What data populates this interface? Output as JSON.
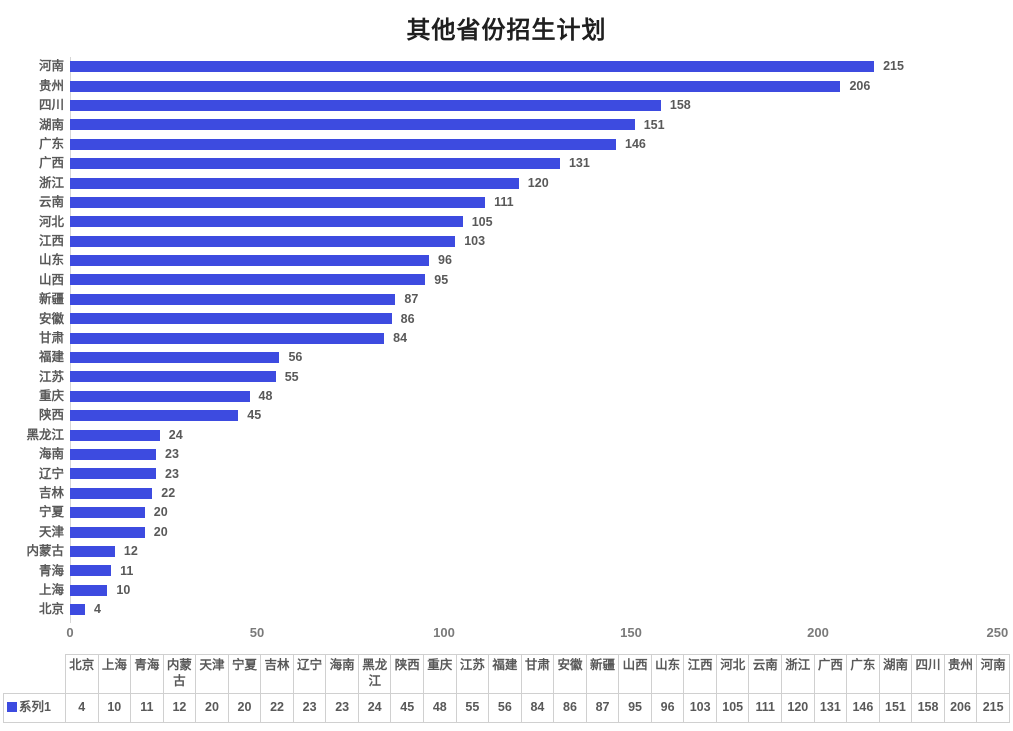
{
  "chart_data": {
    "type": "bar",
    "orientation": "horizontal",
    "title": "其他省份招生计划",
    "xlabel": "",
    "ylabel": "",
    "xlim": [
      0,
      250
    ],
    "x_ticks": [
      0,
      50,
      100,
      150,
      200,
      250
    ],
    "grid": false,
    "data_labels": true,
    "sort_top_to_bottom": "descending",
    "legend_position": "data-table-left",
    "categories": [
      "北京",
      "上海",
      "青海",
      "内蒙古",
      "天津",
      "宁夏",
      "吉林",
      "辽宁",
      "海南",
      "黑龙江",
      "陕西",
      "重庆",
      "江苏",
      "福建",
      "甘肃",
      "安徽",
      "新疆",
      "山西",
      "山东",
      "江西",
      "河北",
      "云南",
      "浙江",
      "广西",
      "广东",
      "湖南",
      "四川",
      "贵州",
      "河南"
    ],
    "series": [
      {
        "name": "系列1",
        "color": "#3d4be0",
        "values": [
          4,
          10,
          11,
          12,
          20,
          20,
          22,
          23,
          23,
          24,
          45,
          48,
          55,
          56,
          84,
          86,
          87,
          95,
          96,
          103,
          105,
          111,
          120,
          131,
          146,
          151,
          158,
          206,
          215
        ]
      }
    ]
  },
  "colors": {
    "bar": "#3d4be0",
    "label_text": "#595959",
    "tick_text": "#7a7a7a",
    "table_border": "#d0d0d0",
    "axis_line": "#d6d6d6",
    "title_text": "#1f1f1f",
    "background": "#ffffff"
  }
}
